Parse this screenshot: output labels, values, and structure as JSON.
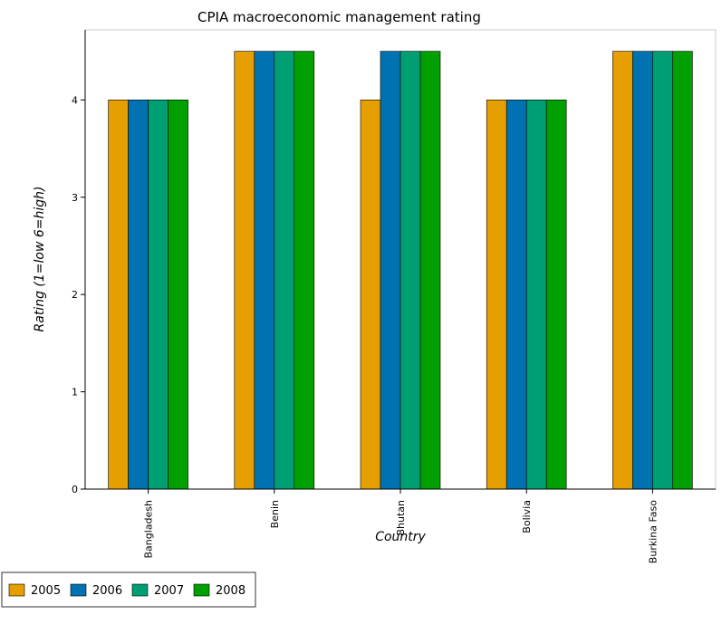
{
  "chart_data": {
    "type": "bar",
    "title": "CPIA macroeconomic management rating",
    "xlabel": "Country",
    "ylabel": "Rating (1=low 6=high)",
    "categories": [
      "Bangladesh",
      "Benin",
      "Bhutan",
      "Bolivia",
      "Burkina Faso"
    ],
    "series": [
      {
        "name": "2005",
        "color": "#E69F00",
        "values": [
          4.0,
          4.5,
          4.0,
          4.0,
          4.5
        ]
      },
      {
        "name": "2006",
        "color": "#0072B2",
        "values": [
          4.0,
          4.5,
          4.5,
          4.0,
          4.5
        ]
      },
      {
        "name": "2007",
        "color": "#009E73",
        "values": [
          4.0,
          4.5,
          4.5,
          4.0,
          4.5
        ]
      },
      {
        "name": "2008",
        "color": "#00A000",
        "values": [
          4.0,
          4.5,
          4.5,
          4.0,
          4.5
        ]
      }
    ],
    "ylim": [
      0,
      4.72
    ],
    "yticks": [
      0,
      1,
      2,
      3,
      4
    ],
    "grid": false,
    "legend_position": "bottom-left"
  }
}
